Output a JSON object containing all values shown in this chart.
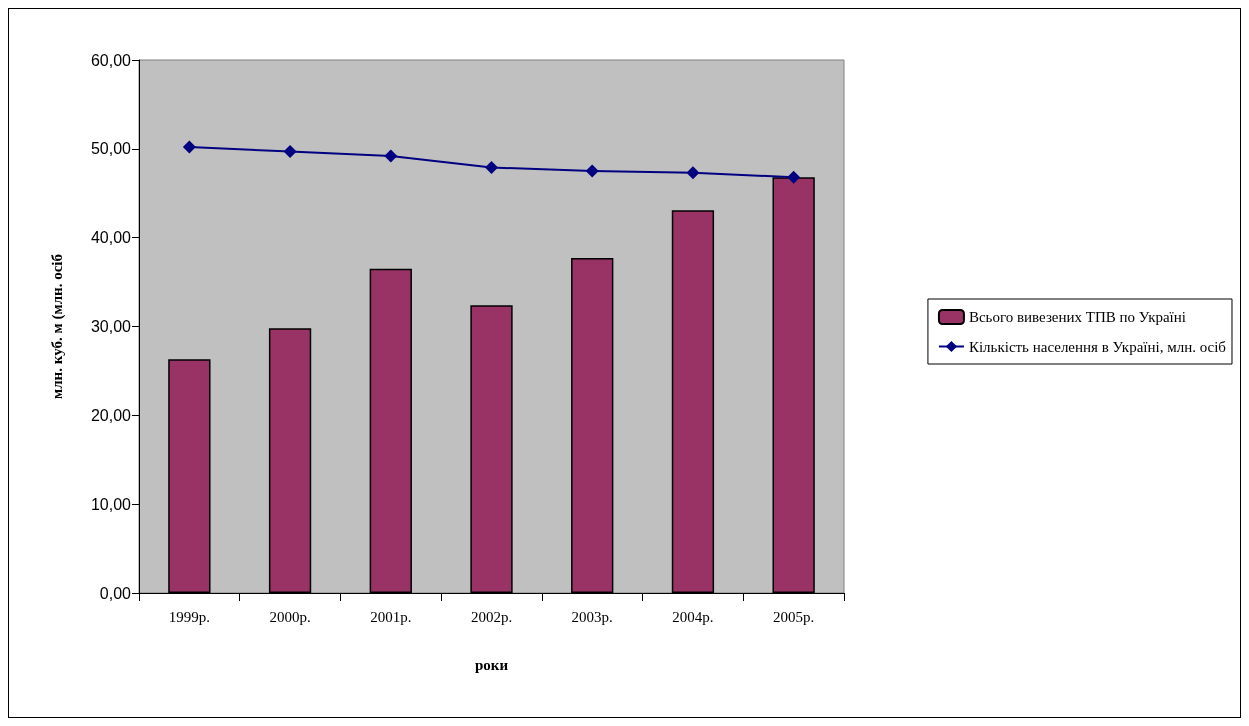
{
  "chart_data": {
    "type": "bar",
    "xlabel": "роки",
    "ylabel": "млн. куб. м (млн. осіб",
    "categories": [
      "1999р.",
      "2000р.",
      "2001р.",
      "2002р.",
      "2003р.",
      "2004р.",
      "2005р."
    ],
    "series": [
      {
        "name": "Всього вивезених ТПВ по Україні",
        "color": "#993366",
        "values": [
          26.3,
          29.8,
          36.5,
          32.4,
          37.7,
          43.1,
          46.8
        ]
      },
      {
        "name": "Кількість населення в Україні, млн. осіб",
        "type": "line",
        "color": "#000080",
        "marker": "diamond",
        "values": [
          50.2,
          49.7,
          49.2,
          47.9,
          47.5,
          47.3,
          46.8
        ]
      }
    ],
    "ylim": [
      0,
      60
    ],
    "yticks": [
      {
        "value": 0,
        "label": "0,00"
      },
      {
        "value": 10,
        "label": "10,00"
      },
      {
        "value": 20,
        "label": "20,00"
      },
      {
        "value": 30,
        "label": "30,00"
      },
      {
        "value": 40,
        "label": "40,00"
      },
      {
        "value": 50,
        "label": "50,00"
      },
      {
        "value": 60,
        "label": "60,00"
      }
    ],
    "grid": false,
    "legend": "right"
  }
}
